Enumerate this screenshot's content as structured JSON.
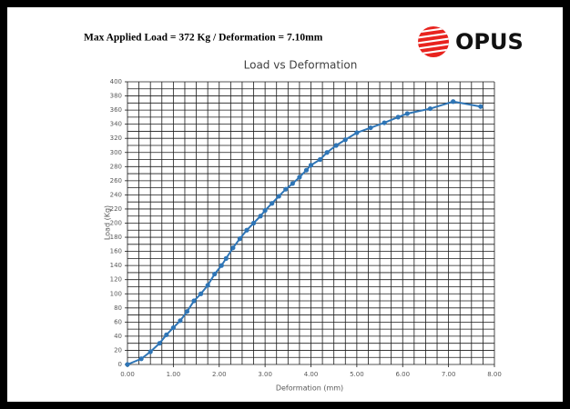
{
  "header": {
    "text": "Max Applied Load = 372 Kg / Deformation = 7.10mm"
  },
  "logo": {
    "text": "OPUS"
  },
  "chart_data": {
    "type": "line",
    "title": "Load vs Deformation",
    "x_label": "Deformation (mm)",
    "y_label": "Load (Kg)",
    "x": [
      0,
      0.3,
      0.5,
      0.7,
      0.85,
      1.0,
      1.15,
      1.3,
      1.45,
      1.6,
      1.75,
      1.9,
      2.05,
      2.15,
      2.3,
      2.45,
      2.6,
      2.75,
      2.9,
      3.0,
      3.15,
      3.3,
      3.45,
      3.6,
      3.75,
      3.9,
      4.0,
      4.2,
      4.35,
      4.55,
      4.75,
      5.0,
      5.3,
      5.6,
      5.9,
      6.1,
      6.6,
      7.1,
      7.7
    ],
    "series": [
      {
        "name": "Load",
        "color": "#2e75b6",
        "values": [
          0,
          8,
          18,
          30,
          42,
          52,
          62,
          75,
          90,
          100,
          112,
          128,
          140,
          150,
          165,
          178,
          190,
          200,
          210,
          218,
          228,
          238,
          248,
          256,
          265,
          275,
          282,
          290,
          300,
          310,
          318,
          328,
          335,
          342,
          350,
          355,
          362,
          372,
          365
        ]
      }
    ],
    "xlim": [
      0,
      8
    ],
    "ylim": [
      0,
      400
    ],
    "xticks": [
      {
        "value": 0,
        "label": "0.00"
      },
      {
        "value": 1,
        "label": "1.00"
      },
      {
        "value": 2,
        "label": "2.00"
      },
      {
        "value": 3,
        "label": "3.00"
      },
      {
        "value": 4,
        "label": "4.00"
      },
      {
        "value": 5,
        "label": "5.00"
      },
      {
        "value": 6,
        "label": "6.00"
      },
      {
        "value": 7,
        "label": "7.00"
      },
      {
        "value": 8,
        "label": "8.00"
      }
    ],
    "yticks": [
      0,
      20,
      40,
      60,
      80,
      100,
      120,
      140,
      160,
      180,
      200,
      220,
      240,
      260,
      280,
      300,
      320,
      340,
      360,
      380,
      400
    ],
    "x_grid": [
      0,
      0.25,
      0.5,
      0.75,
      1,
      1.25,
      1.5,
      1.75,
      2,
      2.25,
      2.5,
      2.75,
      3,
      3.25,
      3.5,
      3.75,
      4,
      4.25,
      4.5,
      4.75,
      5,
      5.25,
      5.5,
      5.75,
      6,
      6.25,
      6.5,
      6.75,
      7,
      7.25,
      7.5,
      7.75,
      8
    ],
    "y_grid": [
      0,
      10,
      20,
      30,
      40,
      50,
      60,
      70,
      80,
      90,
      100,
      110,
      120,
      130,
      140,
      150,
      160,
      170,
      180,
      190,
      200,
      210,
      220,
      230,
      240,
      250,
      260,
      270,
      280,
      290,
      300,
      310,
      320,
      330,
      340,
      350,
      360,
      370,
      380,
      390,
      400
    ],
    "grid": true,
    "markers": true
  }
}
